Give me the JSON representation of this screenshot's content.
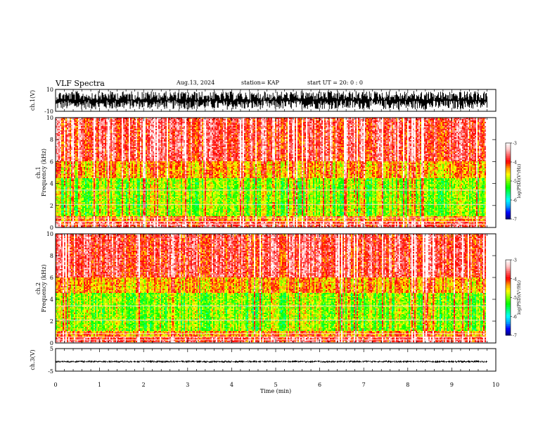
{
  "header": {
    "title": "VLF Spectra",
    "date": "Aug.13, 2024",
    "station": "station= KAP",
    "start": "start  UT  =   20: 0  : 0"
  },
  "chart_data": [
    {
      "type": "line",
      "panel": "ch1-waveform",
      "ylabel": "ch.1(V)",
      "ylim": [
        -10,
        10
      ],
      "yticks": [
        "10",
        "-10"
      ],
      "xlim": [
        0,
        10
      ],
      "series_color": "#000000",
      "series": [
        {
          "envelope_min_max": [
            [
              0,
              -9.5,
              9.5
            ],
            [
              2,
              -9,
              9.5
            ],
            [
              4,
              -9.5,
              9
            ],
            [
              6,
              -9,
              9.5
            ],
            [
              8,
              -9.5,
              9.5
            ],
            [
              9.8,
              -9,
              9
            ]
          ]
        }
      ]
    },
    {
      "type": "heatmap",
      "panel": "ch1-spectrogram",
      "ylabel": "ch.1 Frequency (kHz)",
      "ylim": [
        0,
        10
      ],
      "yticks": [
        "0",
        "2",
        "4",
        "6",
        "8",
        "10"
      ],
      "xlim": [
        0,
        10
      ],
      "data_xmax": 9.8,
      "colorbar": {
        "label": "log(PSD)(V²/Hz)",
        "ticks": [
          "-3",
          "-4",
          "-5",
          "-6",
          "-7"
        ],
        "range": [
          -7,
          -3
        ]
      },
      "levels_by_band_kHz": [
        [
          0,
          0.5,
          -3.8
        ],
        [
          0.5,
          1.0,
          -4.3
        ],
        [
          1.0,
          4.5,
          -5.0
        ],
        [
          4.5,
          6.0,
          -4.4
        ],
        [
          6.0,
          10.0,
          -3.8
        ]
      ]
    },
    {
      "type": "heatmap",
      "panel": "ch2-spectrogram",
      "ylabel": "ch.2 Frequency (kHz)",
      "ylim": [
        0,
        10
      ],
      "yticks": [
        "0",
        "2",
        "4",
        "6",
        "8",
        "10"
      ],
      "xlim": [
        0,
        10
      ],
      "data_xmax": 9.8,
      "colorbar": {
        "label": "log(PSD)(V²/Hz)",
        "ticks": [
          "-3",
          "-4",
          "-5",
          "-6",
          "-7"
        ],
        "range": [
          -7,
          -3
        ]
      },
      "levels_by_band_kHz": [
        [
          0,
          0.5,
          -3.8
        ],
        [
          0.5,
          1.0,
          -4.3
        ],
        [
          1.0,
          4.5,
          -5.0
        ],
        [
          4.5,
          6.0,
          -4.4
        ],
        [
          6.0,
          10.0,
          -3.8
        ]
      ]
    },
    {
      "type": "line",
      "panel": "ch3-waveform",
      "ylabel": "ch.3(V)",
      "ylim": [
        -5,
        5
      ],
      "yticks": [
        "5",
        "-5"
      ],
      "xlim": [
        0,
        10
      ],
      "xlabel": "Time (min)",
      "xticks": [
        "0",
        "1",
        "2",
        "3",
        "4",
        "5",
        "6",
        "7",
        "8",
        "9",
        "10"
      ],
      "series_color": "#000000",
      "series": [
        {
          "envelope_min_max": [
            [
              0,
              -1.3,
              -0.2
            ],
            [
              5,
              -1.3,
              -0.2
            ],
            [
              9.8,
              -1.3,
              -0.2
            ]
          ]
        }
      ]
    }
  ],
  "colors": {
    "colormap": [
      "#000080",
      "#0000ff",
      "#00a0ff",
      "#00ffff",
      "#00ff80",
      "#00ff00",
      "#80ff00",
      "#ffff00",
      "#ffa000",
      "#ff0000",
      "#ff6060",
      "#ffc8c8",
      "#ffffff"
    ]
  }
}
